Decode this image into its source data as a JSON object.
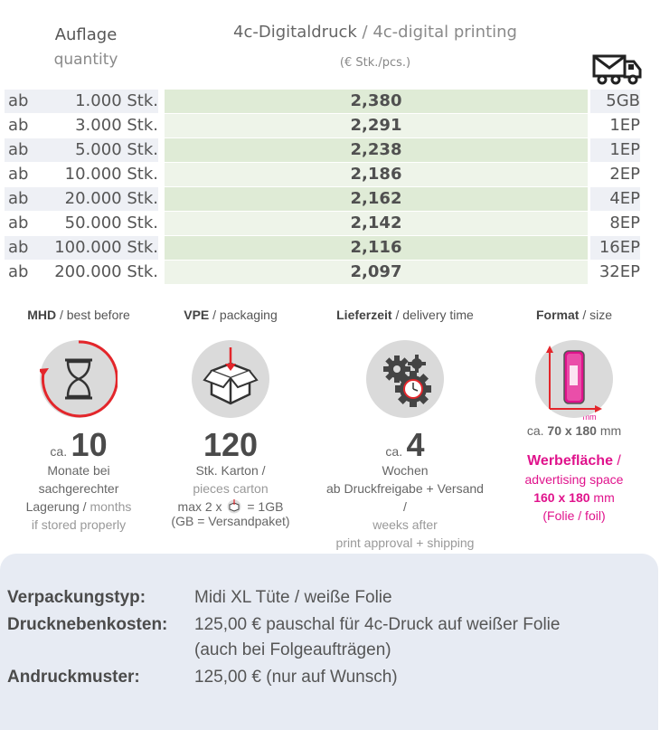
{
  "header": {
    "quantity_de": "Auflage",
    "quantity_en": "quantity",
    "print_de": "4c-Digitaldruck",
    "print_sep": " / ",
    "print_en": "4c-digital printing",
    "unit": "(€ Stk./pcs.)",
    "shipping_icon": "envelope-truck-icon"
  },
  "rows": [
    {
      "ab": "ab",
      "qty": "1.000 Stk.",
      "price": "2,380",
      "pack": "5GB"
    },
    {
      "ab": "ab",
      "qty": "3.000 Stk.",
      "price": "2,291",
      "pack": "1EP"
    },
    {
      "ab": "ab",
      "qty": "5.000 Stk.",
      "price": "2,238",
      "pack": "1EP"
    },
    {
      "ab": "ab",
      "qty": "10.000 Stk.",
      "price": "2,186",
      "pack": "2EP"
    },
    {
      "ab": "ab",
      "qty": "20.000 Stk.",
      "price": "2,162",
      "pack": "4EP"
    },
    {
      "ab": "ab",
      "qty": "50.000 Stk.",
      "price": "2,142",
      "pack": "8EP"
    },
    {
      "ab": "ab",
      "qty": "100.000 Stk.",
      "price": "2,116",
      "pack": "16EP"
    },
    {
      "ab": "ab",
      "qty": "200.000 Stk.",
      "price": "2,097",
      "pack": "32EP"
    }
  ],
  "info": {
    "mhd": {
      "title_de": "MHD",
      "title_en": "best before",
      "icon": "hourglass-icon",
      "ca": "ca.",
      "value": "10",
      "line1": "Monate bei",
      "line2": "sachgerechter",
      "line3_de": "Lagerung",
      "line3_en": "months",
      "line4": "if stored properly"
    },
    "vpe": {
      "title_de": "VPE",
      "title_en": "packaging",
      "icon": "box-icon",
      "value": "120",
      "line1_de": "Stk. Karton",
      "line2_en": "pieces carton",
      "max_prefix": "max 2 x",
      "max_suffix": "= 1GB",
      "gb_note": "(GB = Versandpaket)"
    },
    "delivery": {
      "title_de": "Lieferzeit",
      "title_en": "delivery time",
      "icon": "gears-clock-icon",
      "ca": "ca.",
      "value": "4",
      "line1": "Wochen",
      "line2_de": "ab Druckfreigabe + Versand",
      "line3_en": "weeks after",
      "line4_en": "print approval + shipping"
    },
    "format": {
      "title_de": "Format",
      "title_en": "size",
      "icon": "bag-dimension-icon",
      "mm_label": "mm",
      "size_prefix": "ca.",
      "size_value": "70 x 180",
      "size_unit": "mm",
      "ad_de": "Werbefläche",
      "ad_en": "advertising space",
      "ad_size": "160 x 180",
      "ad_unit": "mm",
      "ad_foil": "(Folie / foil)",
      "accent": "#e0138c"
    }
  },
  "details": [
    {
      "label": "Verpackungstyp:",
      "value": "Midi XL Tüte / weiße Folie"
    },
    {
      "label": "Drucknebenkosten:",
      "value": "125,00 € pauschal für 4c-Druck auf weißer Folie",
      "value2": "(auch bei Folgeaufträgen)"
    },
    {
      "label": "Andruckmuster:",
      "value": "125,00 € (nur auf Wunsch)"
    }
  ]
}
